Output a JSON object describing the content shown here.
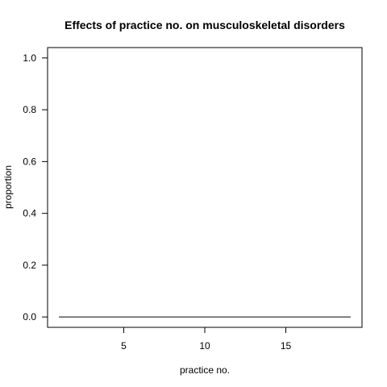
{
  "chart_data": {
    "type": "line",
    "title": "Effects of practice no. on musculoskeletal disorders",
    "xlabel": "practice no.",
    "ylabel": "proportion",
    "xlim": [
      0.3,
      19.7
    ],
    "ylim": [
      -0.04,
      1.04
    ],
    "xticks": [
      5,
      10,
      15
    ],
    "yticks": [
      0.0,
      0.2,
      0.4,
      0.6,
      0.8,
      1.0
    ],
    "ytick_labels": [
      "0.0",
      "0.2",
      "0.4",
      "0.6",
      "0.8",
      "1.0"
    ],
    "grid": false,
    "series": [
      {
        "x": [
          1,
          19
        ],
        "y": [
          0.0,
          0.0
        ],
        "color": "#000000"
      }
    ]
  }
}
